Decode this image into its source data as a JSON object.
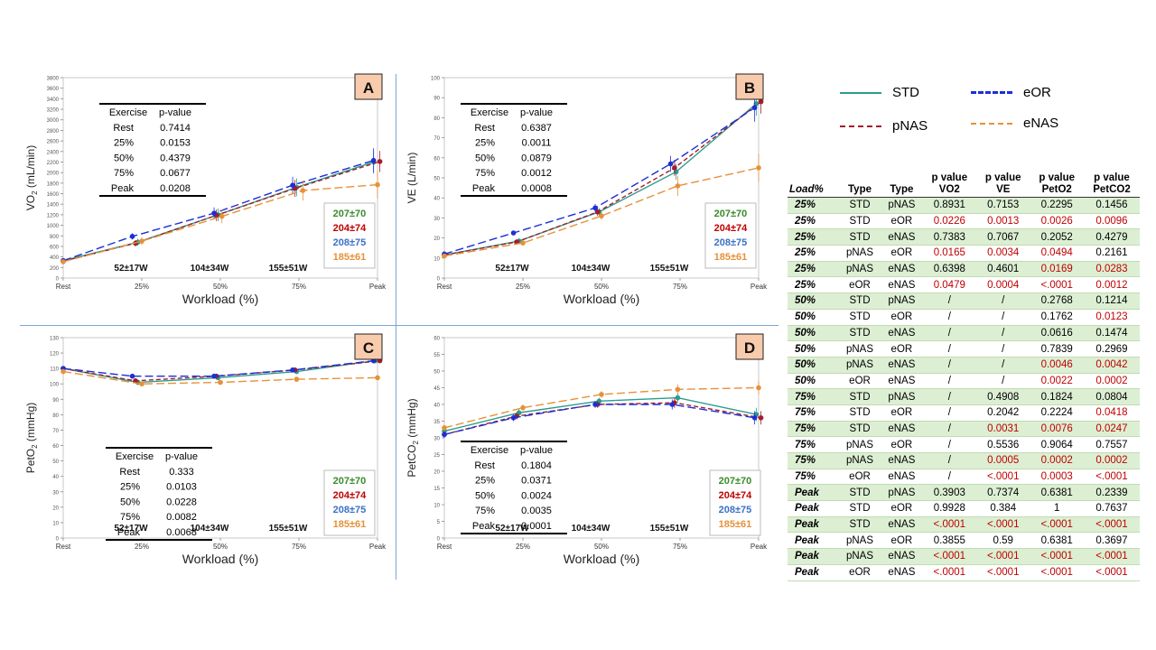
{
  "colors": {
    "STD": "#2a9d8f",
    "pNAS": "#a31d2a",
    "eOR": "#1c2fd6",
    "eNAS": "#e69138",
    "n_green": "#3a8a2a",
    "n_red": "#c00000",
    "n_blue": "#3a72c4",
    "n_orange": "#e69138",
    "panel_letter_bg": "#f8cbad",
    "row_shade": "#dcefd3",
    "sig": "#c00000"
  },
  "chart_data": [
    {
      "id": "A",
      "type": "line",
      "letter": "A",
      "ylabel": "VO2 (mL/min)",
      "ylabel_main": "VO",
      "ylabel_sub": "2",
      "ylabel_rest": " (mL/min)",
      "xlabel": "Workload (%)",
      "ylim": [
        0,
        3800
      ],
      "ytick_step": 200,
      "yticks": [
        "0",
        "200",
        "400",
        "600",
        "800",
        "1000",
        "1200",
        "1400",
        "1600",
        "1800",
        "2000",
        "2200",
        "2400",
        "2600",
        "2800",
        "3000",
        "3200",
        "3400",
        "3600",
        "3800"
      ],
      "categories": [
        "Rest",
        "25%",
        "50%",
        "75%",
        "Peak"
      ],
      "watts": [
        "52±17W",
        "104±34W",
        "155±51W"
      ],
      "series": [
        {
          "name": "STD",
          "x": [
            0,
            0.95,
            1.97,
            2.97,
            3.95
          ],
          "values": [
            330,
            680,
            1200,
            1720,
            2200
          ],
          "err": [
            30,
            70,
            120,
            170,
            220
          ]
        },
        {
          "name": "pNAS",
          "x": [
            0,
            0.92,
            1.95,
            2.95,
            4.03
          ],
          "values": [
            320,
            660,
            1190,
            1700,
            2210
          ],
          "err": [
            30,
            60,
            110,
            160,
            200
          ]
        },
        {
          "name": "eOR",
          "x": [
            0,
            0.88,
            1.92,
            2.92,
            3.95
          ],
          "values": [
            330,
            790,
            1230,
            1760,
            2230
          ],
          "err": [
            30,
            60,
            110,
            160,
            230
          ]
        },
        {
          "name": "eNAS",
          "x": [
            0,
            1.0,
            2.02,
            3.05,
            4.0
          ],
          "values": [
            310,
            700,
            1170,
            1660,
            1770
          ],
          "err": [
            30,
            70,
            130,
            190,
            260
          ]
        }
      ],
      "pvalues": {
        "headers": [
          "Exercise",
          "p-value"
        ],
        "rows": [
          [
            "Rest",
            "0.7414"
          ],
          [
            "25%",
            "0.0153"
          ],
          [
            "50%",
            "0.4379"
          ],
          [
            "75%",
            "0.0677"
          ],
          [
            "Peak",
            "0.0208"
          ]
        ]
      },
      "n_labels": [
        "207±70",
        "204±74",
        "208±75",
        "185±61"
      ]
    },
    {
      "id": "B",
      "type": "line",
      "letter": "B",
      "ylabel": "VE (L/min)",
      "xlabel": "Workload (%)",
      "ylim": [
        0,
        100
      ],
      "ytick_step": 10,
      "yticks": [
        "0",
        "10",
        "20",
        "30",
        "40",
        "50",
        "60",
        "70",
        "80",
        "90",
        "100"
      ],
      "categories": [
        "Rest",
        "25%",
        "50%",
        "75%",
        "Peak"
      ],
      "watts": [
        "52±17W",
        "104±34W",
        "155±51W"
      ],
      "series": [
        {
          "name": "STD",
          "x": [
            0,
            0.95,
            1.97,
            2.95,
            3.97
          ],
          "values": [
            11.5,
            18.5,
            33,
            53,
            87
          ],
          "err": [
            0.5,
            1,
            2,
            4,
            6
          ]
        },
        {
          "name": "pNAS",
          "x": [
            0,
            0.92,
            1.95,
            2.93,
            4.03
          ],
          "values": [
            11.5,
            18,
            33,
            55,
            88
          ],
          "err": [
            0.5,
            1,
            2,
            4,
            6
          ]
        },
        {
          "name": "eOR",
          "x": [
            0,
            0.88,
            1.92,
            2.88,
            3.95
          ],
          "values": [
            12,
            22.5,
            35,
            57,
            85
          ],
          "err": [
            0.5,
            1,
            2,
            4,
            7
          ]
        },
        {
          "name": "eNAS",
          "x": [
            0,
            1.0,
            2.0,
            2.97,
            4.0
          ],
          "values": [
            11,
            17.5,
            31,
            46,
            55
          ],
          "err": [
            0.5,
            1,
            2,
            5,
            7
          ]
        }
      ],
      "pvalues": {
        "headers": [
          "Exercise",
          "p-value"
        ],
        "rows": [
          [
            "Rest",
            "0.6387"
          ],
          [
            "25%",
            "0.0011"
          ],
          [
            "50%",
            "0.0879"
          ],
          [
            "75%",
            "0.0012"
          ],
          [
            "Peak",
            "0.0008"
          ]
        ]
      },
      "n_labels": [
        "207±70",
        "204±74",
        "208±75",
        "185±61"
      ]
    },
    {
      "id": "C",
      "type": "line",
      "letter": "C",
      "ylabel": "PetO2 (mmHg)",
      "ylabel_main": "PetO",
      "ylabel_sub": "2",
      "ylabel_rest": " (mmHg)",
      "xlabel": "Workload (%)",
      "ylim": [
        0,
        130
      ],
      "ytick_step": 10,
      "yticks": [
        "0",
        "10",
        "20",
        "30",
        "40",
        "50",
        "60",
        "70",
        "80",
        "90",
        "100",
        "110",
        "120",
        "130"
      ],
      "categories": [
        "Rest",
        "25%",
        "50%",
        "75%",
        "Peak"
      ],
      "watts": [
        "52±17W",
        "104±34W",
        "155±51W"
      ],
      "series": [
        {
          "name": "STD",
          "x": [
            0,
            0.95,
            1.97,
            2.97,
            3.97
          ],
          "values": [
            110,
            101,
            104,
            108,
            115
          ],
          "err": [
            1.5,
            1.5,
            1.5,
            1.5,
            1.5
          ]
        },
        {
          "name": "pNAS",
          "x": [
            0,
            0.92,
            1.95,
            2.95,
            4.03
          ],
          "values": [
            110,
            102,
            105,
            109,
            115
          ],
          "err": [
            1.5,
            1.5,
            1.5,
            1.5,
            1.5
          ]
        },
        {
          "name": "eOR",
          "x": [
            0,
            0.88,
            1.92,
            2.92,
            3.95
          ],
          "values": [
            110,
            105,
            105,
            109,
            115
          ],
          "err": [
            1.5,
            1.5,
            1.5,
            1.5,
            1.5
          ]
        },
        {
          "name": "eNAS",
          "x": [
            0,
            1.0,
            2.0,
            2.97,
            4.0
          ],
          "values": [
            108,
            100,
            101,
            103,
            104
          ],
          "err": [
            1.5,
            1.5,
            1.5,
            1.5,
            1.5
          ]
        }
      ],
      "pvalues": {
        "headers": [
          "Exercise",
          "p-value"
        ],
        "rows": [
          [
            "Rest",
            "0.333"
          ],
          [
            "25%",
            "0.0103"
          ],
          [
            "50%",
            "0.0228"
          ],
          [
            "75%",
            "0.0082"
          ],
          [
            "Peak",
            "0.0068"
          ]
        ]
      },
      "n_labels": [
        "207±70",
        "204±74",
        "208±75",
        "185±61"
      ]
    },
    {
      "id": "D",
      "type": "line",
      "letter": "D",
      "ylabel": "PetCO2 (mmHg)",
      "ylabel_main": "PetCO",
      "ylabel_sub": "2",
      "ylabel_rest": " (mmHg)",
      "xlabel": "Workload (%)",
      "ylim": [
        0,
        60
      ],
      "ytick_step": 5,
      "yticks": [
        "0",
        "5",
        "10",
        "15",
        "20",
        "25",
        "30",
        "35",
        "40",
        "45",
        "50",
        "55",
        "60"
      ],
      "categories": [
        "Rest",
        "25%",
        "50%",
        "75%",
        "Peak"
      ],
      "watts": [
        "52±17W",
        "104±34W",
        "155±51W"
      ],
      "series": [
        {
          "name": "STD",
          "x": [
            0,
            0.95,
            1.97,
            2.97,
            3.97
          ],
          "values": [
            32,
            37.5,
            41,
            42,
            37
          ],
          "err": [
            1,
            1,
            1,
            1.5,
            2
          ]
        },
        {
          "name": "pNAS",
          "x": [
            0,
            0.92,
            1.95,
            2.93,
            4.03
          ],
          "values": [
            31,
            36.5,
            40,
            40.5,
            36
          ],
          "err": [
            1,
            1,
            1,
            1.5,
            2
          ]
        },
        {
          "name": "eOR",
          "x": [
            0,
            0.88,
            1.92,
            2.9,
            3.95
          ],
          "values": [
            31,
            36,
            40,
            40,
            36
          ],
          "err": [
            1,
            1,
            1,
            1.5,
            2
          ]
        },
        {
          "name": "eNAS",
          "x": [
            0,
            1.0,
            2.0,
            2.97,
            4.0
          ],
          "values": [
            33,
            39,
            43,
            44.5,
            45
          ],
          "err": [
            1,
            1,
            1,
            1.5,
            2
          ]
        }
      ],
      "pvalues": {
        "headers": [
          "Exercise",
          "p-value"
        ],
        "rows": [
          [
            "Rest",
            "0.1804"
          ],
          [
            "25%",
            "0.0371"
          ],
          [
            "50%",
            "0.0024"
          ],
          [
            "75%",
            "0.0035"
          ],
          [
            "Peak",
            "0.0001"
          ]
        ]
      },
      "n_labels": [
        "207±70",
        "204±74",
        "208±75",
        "185±61"
      ]
    }
  ],
  "legend": [
    {
      "name": "STD",
      "dash": "solid"
    },
    {
      "name": "eOR",
      "dash": "long"
    },
    {
      "name": "pNAS",
      "dash": "short"
    },
    {
      "name": "eNAS",
      "dash": "long"
    }
  ],
  "stats_table": {
    "headers": [
      "Load%",
      "Type",
      "Type",
      "p value VO2",
      "p value VE",
      "p value PetO2",
      "p value PetCO2"
    ],
    "header_lines": [
      [
        "Load%"
      ],
      [
        "Type"
      ],
      [
        "Type"
      ],
      [
        "p value",
        "VO2"
      ],
      [
        "p value",
        "VE"
      ],
      [
        "p value",
        "PetO2"
      ],
      [
        "p value",
        "PetCO2"
      ]
    ],
    "rows": [
      {
        "load": "25%",
        "t1": "STD",
        "t2": "pNAS",
        "v": [
          "0.8931",
          "0.7153",
          "0.2295",
          "0.1456"
        ],
        "sig": [
          false,
          false,
          false,
          false
        ]
      },
      {
        "load": "25%",
        "t1": "STD",
        "t2": "eOR",
        "v": [
          "0.0226",
          "0.0013",
          "0.0026",
          "0.0096"
        ],
        "sig": [
          true,
          true,
          true,
          true
        ]
      },
      {
        "load": "25%",
        "t1": "STD",
        "t2": "eNAS",
        "v": [
          "0.7383",
          "0.7067",
          "0.2052",
          "0.4279"
        ],
        "sig": [
          false,
          false,
          false,
          false
        ]
      },
      {
        "load": "25%",
        "t1": "pNAS",
        "t2": "eOR",
        "v": [
          "0.0165",
          "0.0034",
          "0.0494",
          "0.2161"
        ],
        "sig": [
          true,
          true,
          true,
          false
        ]
      },
      {
        "load": "25%",
        "t1": "pNAS",
        "t2": "eNAS",
        "v": [
          "0.6398",
          "0.4601",
          "0.0169",
          "0.0283"
        ],
        "sig": [
          false,
          false,
          true,
          true
        ]
      },
      {
        "load": "25%",
        "t1": "eOR",
        "t2": "eNAS",
        "v": [
          "0.0479",
          "0.0004",
          "<.0001",
          "0.0012"
        ],
        "sig": [
          true,
          true,
          true,
          true
        ]
      },
      {
        "load": "50%",
        "t1": "STD",
        "t2": "pNAS",
        "v": [
          "/",
          "/",
          "0.2768",
          "0.1214"
        ],
        "sig": [
          false,
          false,
          false,
          false
        ]
      },
      {
        "load": "50%",
        "t1": "STD",
        "t2": "eOR",
        "v": [
          "/",
          "/",
          "0.1762",
          "0.0123"
        ],
        "sig": [
          false,
          false,
          false,
          true
        ]
      },
      {
        "load": "50%",
        "t1": "STD",
        "t2": "eNAS",
        "v": [
          "/",
          "/",
          "0.0616",
          "0.1474"
        ],
        "sig": [
          false,
          false,
          false,
          false
        ]
      },
      {
        "load": "50%",
        "t1": "pNAS",
        "t2": "eOR",
        "v": [
          "/",
          "/",
          "0.7839",
          "0.2969"
        ],
        "sig": [
          false,
          false,
          false,
          false
        ]
      },
      {
        "load": "50%",
        "t1": "pNAS",
        "t2": "eNAS",
        "v": [
          "/",
          "/",
          "0.0046",
          "0.0042"
        ],
        "sig": [
          false,
          false,
          true,
          true
        ]
      },
      {
        "load": "50%",
        "t1": "eOR",
        "t2": "eNAS",
        "v": [
          "/",
          "/",
          "0.0022",
          "0.0002"
        ],
        "sig": [
          false,
          false,
          true,
          true
        ]
      },
      {
        "load": "75%",
        "t1": "STD",
        "t2": "pNAS",
        "v": [
          "/",
          "0.4908",
          "0.1824",
          "0.0804"
        ],
        "sig": [
          false,
          false,
          false,
          false
        ]
      },
      {
        "load": "75%",
        "t1": "STD",
        "t2": "eOR",
        "v": [
          "/",
          "0.2042",
          "0.2224",
          "0.0418"
        ],
        "sig": [
          false,
          false,
          false,
          true
        ]
      },
      {
        "load": "75%",
        "t1": "STD",
        "t2": "eNAS",
        "v": [
          "/",
          "0.0031",
          "0.0076",
          "0.0247"
        ],
        "sig": [
          false,
          true,
          true,
          true
        ]
      },
      {
        "load": "75%",
        "t1": "pNAS",
        "t2": "eOR",
        "v": [
          "/",
          "0.5536",
          "0.9064",
          "0.7557"
        ],
        "sig": [
          false,
          false,
          false,
          false
        ]
      },
      {
        "load": "75%",
        "t1": "pNAS",
        "t2": "eNAS",
        "v": [
          "/",
          "0.0005",
          "0.0002",
          "0.0002"
        ],
        "sig": [
          false,
          true,
          true,
          true
        ]
      },
      {
        "load": "75%",
        "t1": "eOR",
        "t2": "eNAS",
        "v": [
          "/",
          "<.0001",
          "0.0003",
          "<.0001"
        ],
        "sig": [
          false,
          true,
          true,
          true
        ]
      },
      {
        "load": "Peak",
        "t1": "STD",
        "t2": "pNAS",
        "v": [
          "0.3903",
          "0.7374",
          "0.6381",
          "0.2339"
        ],
        "sig": [
          false,
          false,
          false,
          false
        ]
      },
      {
        "load": "Peak",
        "t1": "STD",
        "t2": "eOR",
        "v": [
          "0.9928",
          "0.384",
          "1",
          "0.7637"
        ],
        "sig": [
          false,
          false,
          false,
          false
        ]
      },
      {
        "load": "Peak",
        "t1": "STD",
        "t2": "eNAS",
        "v": [
          "<.0001",
          "<.0001",
          "<.0001",
          "<.0001"
        ],
        "sig": [
          true,
          true,
          true,
          true
        ]
      },
      {
        "load": "Peak",
        "t1": "pNAS",
        "t2": "eOR",
        "v": [
          "0.3855",
          "0.59",
          "0.6381",
          "0.3697"
        ],
        "sig": [
          false,
          false,
          false,
          false
        ]
      },
      {
        "load": "Peak",
        "t1": "pNAS",
        "t2": "eNAS",
        "v": [
          "<.0001",
          "<.0001",
          "<.0001",
          "<.0001"
        ],
        "sig": [
          true,
          true,
          true,
          true
        ]
      },
      {
        "load": "Peak",
        "t1": "eOR",
        "t2": "eNAS",
        "v": [
          "<.0001",
          "<.0001",
          "<.0001",
          "<.0001"
        ],
        "sig": [
          true,
          true,
          true,
          true
        ]
      }
    ]
  }
}
